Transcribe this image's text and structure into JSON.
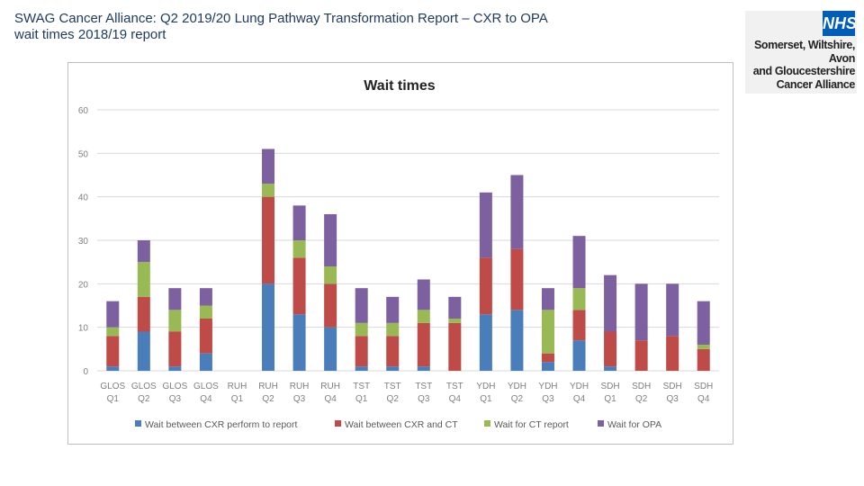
{
  "slide": {
    "title_line1": "SWAG Cancer Alliance:  Q2 2019/20 Lung Pathway Transformation Report – CXR to OPA",
    "title_line2": "wait times 2018/19 report"
  },
  "logo": {
    "nhs_text": "NHS",
    "line1": "Somerset, Wiltshire, Avon",
    "line2": "and Gloucestershire",
    "line3": "Cancer Alliance",
    "color": "#005eb8"
  },
  "chart_data": {
    "type": "bar",
    "stacked": true,
    "title": "Wait times",
    "ylim": [
      0,
      60
    ],
    "yticks": [
      0,
      10,
      20,
      30,
      40,
      50,
      60
    ],
    "grid": true,
    "legend_position": "bottom",
    "categories": [
      [
        "GLOS",
        "Q1"
      ],
      [
        "GLOS",
        "Q2"
      ],
      [
        "GLOS",
        "Q3"
      ],
      [
        "GLOS",
        "Q4"
      ],
      [
        "RUH",
        "Q1"
      ],
      [
        "RUH",
        "Q2"
      ],
      [
        "RUH",
        "Q3"
      ],
      [
        "RUH",
        "Q4"
      ],
      [
        "TST",
        "Q1"
      ],
      [
        "TST",
        "Q2"
      ],
      [
        "TST",
        "Q3"
      ],
      [
        "TST",
        "Q4"
      ],
      [
        "YDH",
        "Q1"
      ],
      [
        "YDH",
        "Q2"
      ],
      [
        "YDH",
        "Q3"
      ],
      [
        "YDH",
        "Q4"
      ],
      [
        "SDH",
        "Q1"
      ],
      [
        "SDH",
        "Q2"
      ],
      [
        "SDH",
        "Q3"
      ],
      [
        "SDH",
        "Q4"
      ]
    ],
    "series": [
      {
        "name": "Wait between CXR perform to report",
        "color": "#4a7ebb",
        "values": [
          1,
          9,
          1,
          4,
          0,
          20,
          13,
          10,
          1,
          1,
          1,
          0,
          13,
          14,
          2,
          7,
          1,
          0,
          0,
          0
        ]
      },
      {
        "name": "Wait between CXR and CT",
        "color": "#be4b48",
        "values": [
          7,
          8,
          8,
          8,
          0,
          20,
          13,
          10,
          7,
          7,
          10,
          11,
          13,
          14,
          2,
          7,
          8,
          7,
          8,
          5
        ]
      },
      {
        "name": "Wait for CT report",
        "color": "#98b954",
        "values": [
          2,
          8,
          5,
          3,
          0,
          3,
          4,
          4,
          3,
          3,
          3,
          1,
          0,
          0,
          10,
          5,
          0,
          0,
          0,
          1
        ]
      },
      {
        "name": "Wait for OPA",
        "color": "#7d60a0",
        "values": [
          6,
          5,
          5,
          4,
          0,
          8,
          8,
          12,
          8,
          6,
          7,
          5,
          15,
          17,
          5,
          12,
          13,
          13,
          12,
          10
        ]
      }
    ]
  }
}
